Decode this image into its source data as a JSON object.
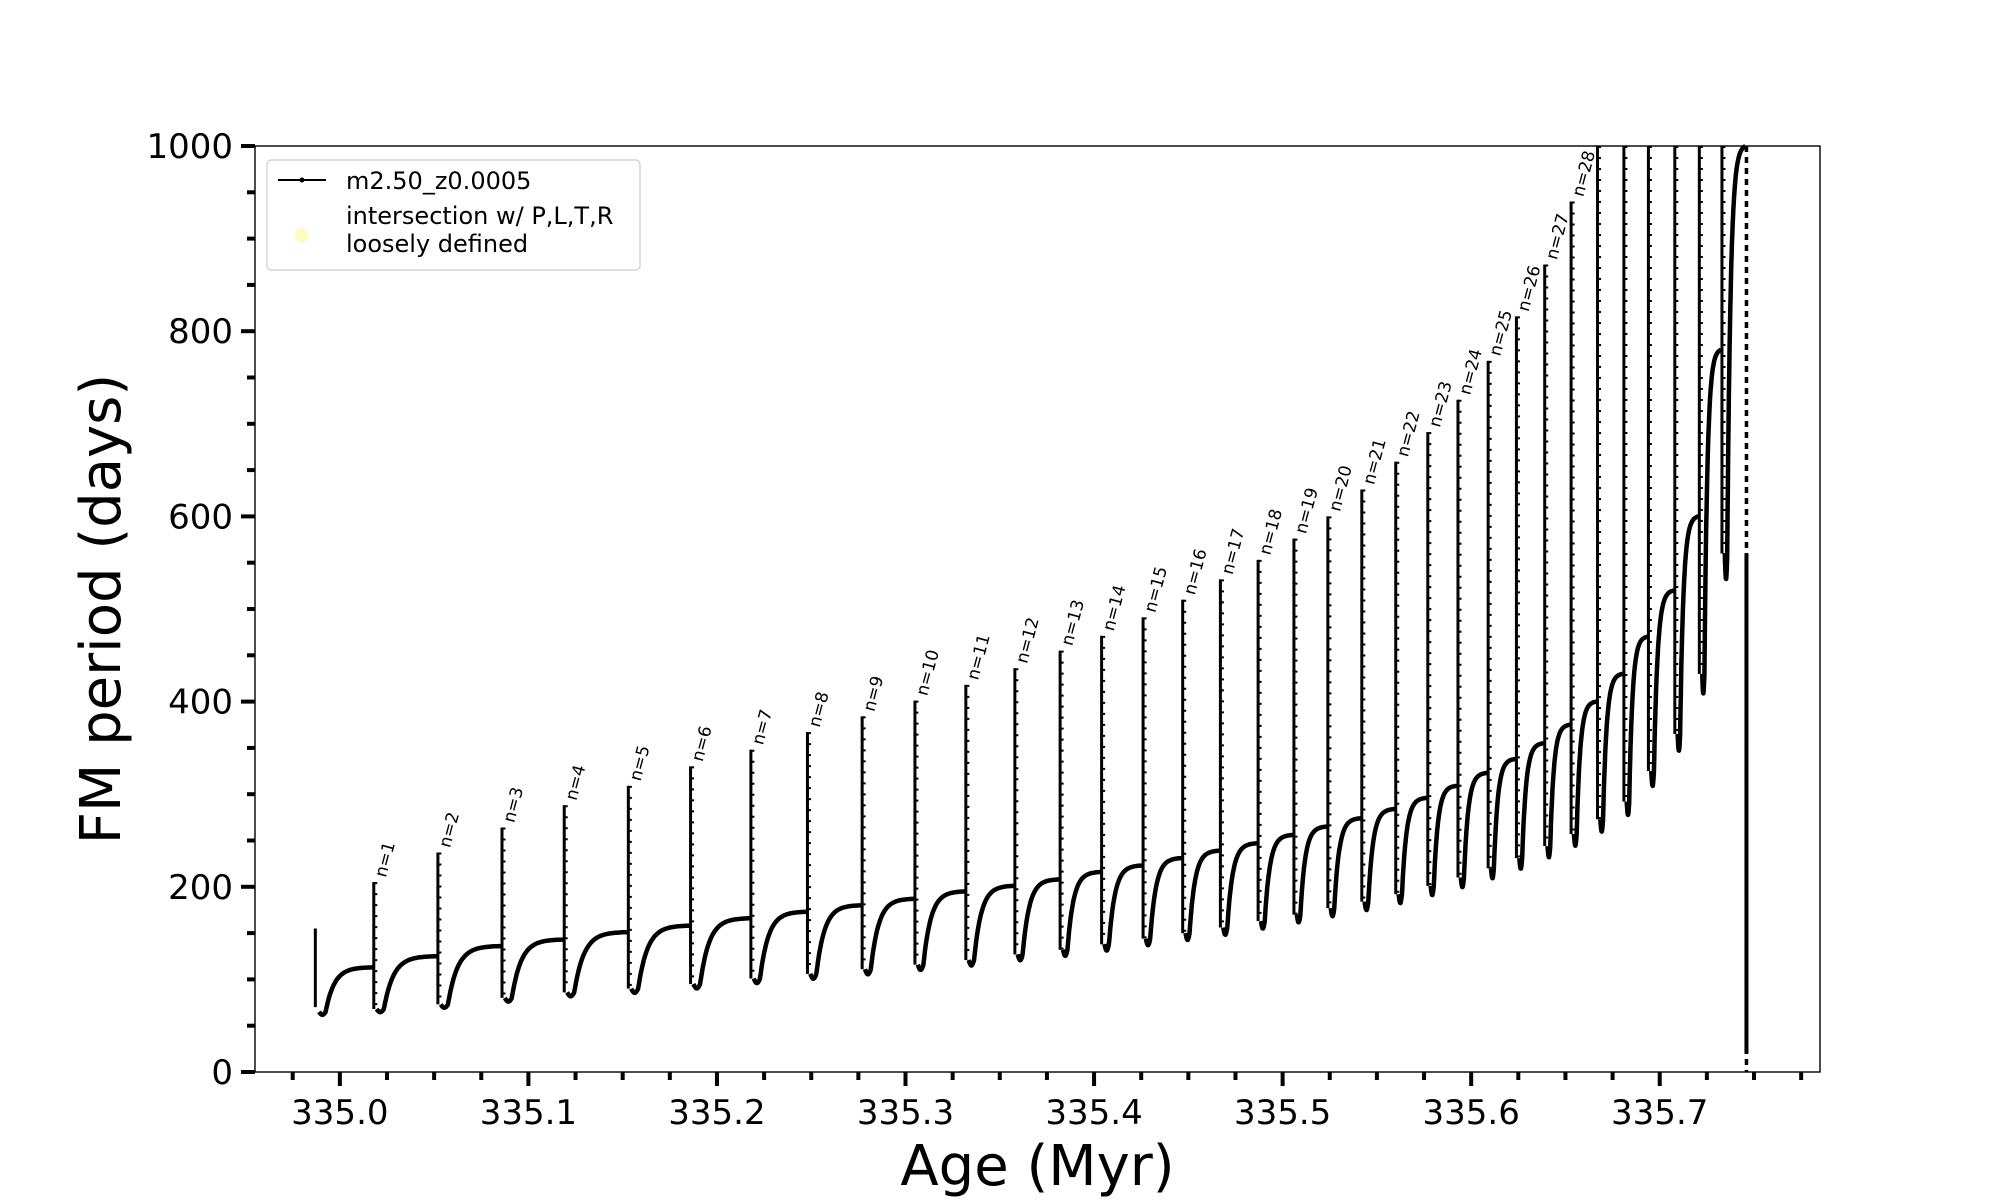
{
  "chart_data": {
    "type": "line",
    "title": "",
    "xlabel": "Age (Myr)",
    "ylabel": "FM period (days)",
    "xlim": [
      334.955,
      335.785
    ],
    "ylim": [
      0,
      1000
    ],
    "x_ticks": [
      "335.0",
      "335.1",
      "335.2",
      "335.3",
      "335.4",
      "335.5",
      "335.6",
      "335.7"
    ],
    "y_ticks": [
      "0",
      "200",
      "400",
      "600",
      "800",
      "1000"
    ],
    "grid": false,
    "legend_position": "top-left",
    "legend": [
      {
        "label": "m2.50_z0.0005",
        "marker": "line-with-dots",
        "color": "#000000"
      },
      {
        "label": "intersection w/ P,L,T,R\nloosely defined",
        "marker": "circle",
        "color": "#fdfdc0"
      }
    ],
    "series": [
      {
        "name": "m2.50_z0.0005",
        "color": "#000000",
        "start": {
          "age": 334.987,
          "period": 155
        },
        "pulses": [
          {
            "label": "n=1",
            "age": 335.018,
            "base": 113,
            "peak": 205,
            "dip": 68
          },
          {
            "label": "n=2",
            "age": 335.052,
            "base": 125,
            "peak": 237,
            "dip": 73
          },
          {
            "label": "n=3",
            "age": 335.086,
            "base": 136,
            "peak": 264,
            "dip": 80
          },
          {
            "label": "n=4",
            "age": 335.119,
            "base": 143,
            "peak": 288,
            "dip": 86
          },
          {
            "label": "n=5",
            "age": 335.153,
            "base": 151,
            "peak": 309,
            "dip": 90
          },
          {
            "label": "n=6",
            "age": 335.186,
            "base": 158,
            "peak": 330,
            "dip": 95
          },
          {
            "label": "n=7",
            "age": 335.218,
            "base": 166,
            "peak": 348,
            "dip": 101
          },
          {
            "label": "n=8",
            "age": 335.248,
            "base": 173,
            "peak": 367,
            "dip": 106
          },
          {
            "label": "n=9",
            "age": 335.277,
            "base": 180,
            "peak": 384,
            "dip": 111
          },
          {
            "label": "n=10",
            "age": 335.305,
            "base": 187,
            "peak": 401,
            "dip": 116
          },
          {
            "label": "n=11",
            "age": 335.332,
            "base": 195,
            "peak": 418,
            "dip": 121
          },
          {
            "label": "n=12",
            "age": 335.358,
            "base": 201,
            "peak": 436,
            "dip": 127
          },
          {
            "label": "n=13",
            "age": 335.382,
            "base": 208,
            "peak": 455,
            "dip": 132
          },
          {
            "label": "n=14",
            "age": 335.404,
            "base": 216,
            "peak": 471,
            "dip": 138
          },
          {
            "label": "n=15",
            "age": 335.426,
            "base": 223,
            "peak": 491,
            "dip": 144
          },
          {
            "label": "n=16",
            "age": 335.447,
            "base": 231,
            "peak": 510,
            "dip": 150
          },
          {
            "label": "n=17",
            "age": 335.467,
            "base": 239,
            "peak": 532,
            "dip": 156
          },
          {
            "label": "n=18",
            "age": 335.487,
            "base": 247,
            "peak": 553,
            "dip": 163
          },
          {
            "label": "n=19",
            "age": 335.506,
            "base": 256,
            "peak": 576,
            "dip": 170
          },
          {
            "label": "n=20",
            "age": 335.524,
            "base": 265,
            "peak": 600,
            "dip": 177
          },
          {
            "label": "n=21",
            "age": 335.542,
            "base": 274,
            "peak": 629,
            "dip": 184
          },
          {
            "label": "n=22",
            "age": 335.56,
            "base": 284,
            "peak": 659,
            "dip": 192
          },
          {
            "label": "n=23",
            "age": 335.577,
            "base": 296,
            "peak": 691,
            "dip": 201
          },
          {
            "label": "n=24",
            "age": 335.593,
            "base": 309,
            "peak": 726,
            "dip": 210
          },
          {
            "label": "n=25",
            "age": 335.609,
            "base": 323,
            "peak": 768,
            "dip": 220
          },
          {
            "label": "n=26",
            "age": 335.624,
            "base": 338,
            "peak": 816,
            "dip": 231
          },
          {
            "label": "n=27",
            "age": 335.639,
            "base": 355,
            "peak": 872,
            "dip": 244
          },
          {
            "label": "n=28",
            "age": 335.653,
            "base": 375,
            "peak": 940,
            "dip": 257
          },
          {
            "label": "",
            "age": 335.667,
            "base": 400,
            "peak": 1000,
            "dip": 273
          },
          {
            "label": "",
            "age": 335.681,
            "base": 430,
            "peak": 1000,
            "dip": 292
          },
          {
            "label": "",
            "age": 335.694,
            "base": 470,
            "peak": 1000,
            "dip": 325
          },
          {
            "label": "",
            "age": 335.708,
            "base": 520,
            "peak": 1000,
            "dip": 365
          },
          {
            "label": "",
            "age": 335.721,
            "base": 600,
            "peak": 1000,
            "dip": 430
          },
          {
            "label": "",
            "age": 335.733,
            "base": 780,
            "peak": 1000,
            "dip": 560
          }
        ],
        "final": {
          "age": 335.746,
          "min": 0,
          "max": 1000
        }
      }
    ]
  }
}
